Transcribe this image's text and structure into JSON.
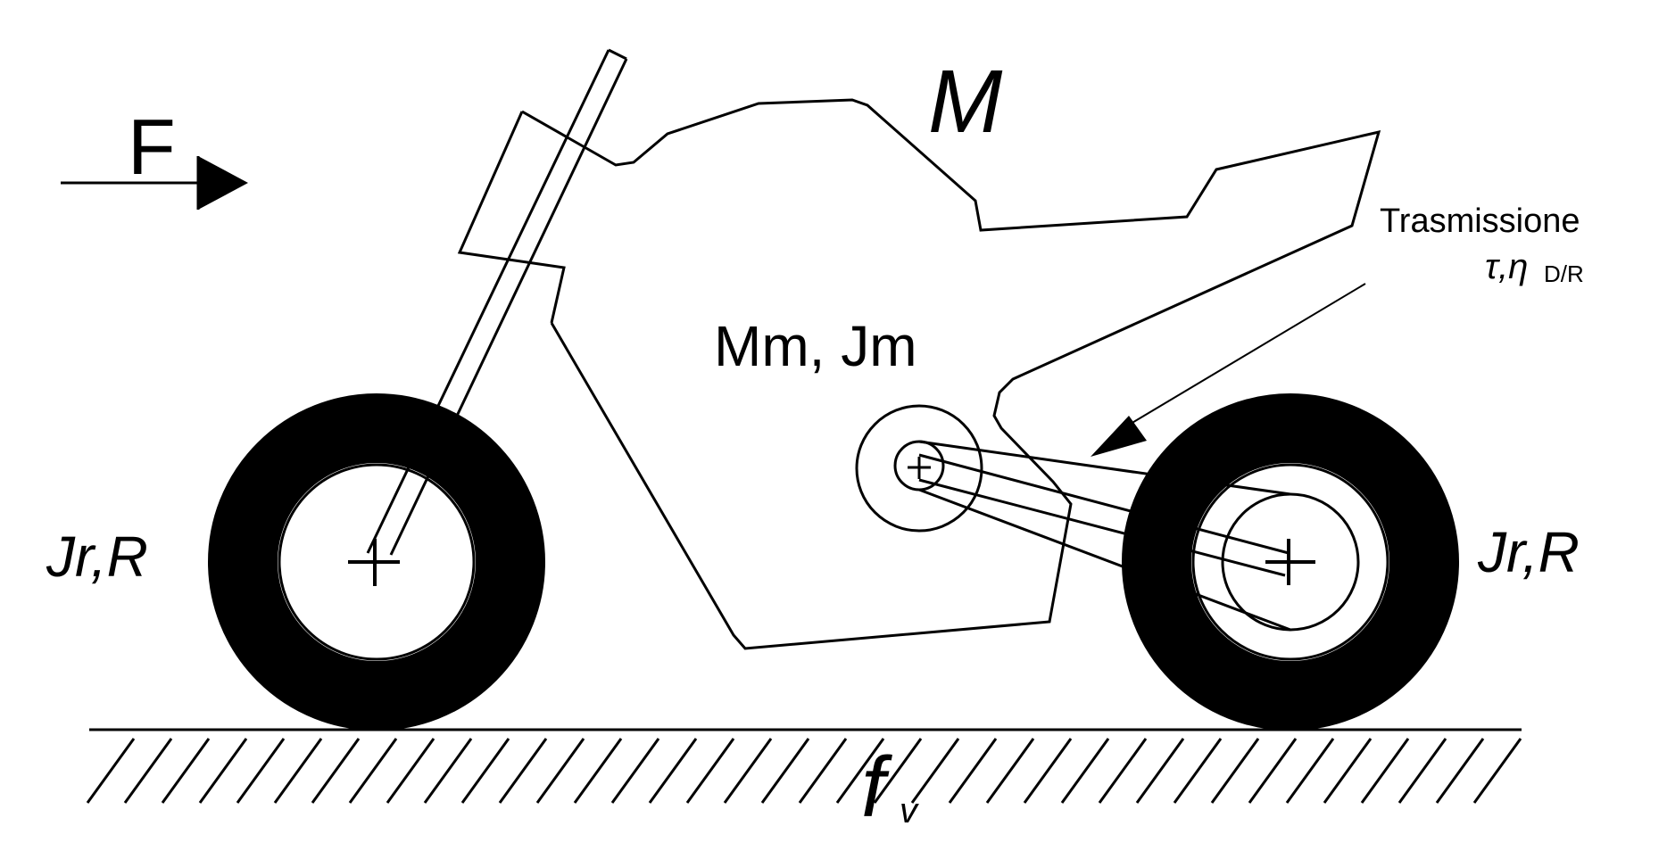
{
  "labels": {
    "force": "F",
    "mass": "M",
    "motor": "Mm, Jm",
    "transmission_title": "Trasmissione",
    "transmission_params": "τ,η",
    "transmission_sub": "D/R",
    "front_wheel": "Jr,R",
    "rear_wheel": "Jr,R",
    "friction": "f",
    "friction_sub": "v"
  },
  "colors": {
    "ink": "#000000",
    "background": "#ffffff"
  }
}
